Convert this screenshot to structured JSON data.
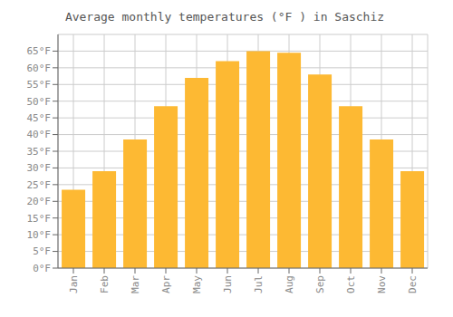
{
  "chart_data": {
    "type": "bar",
    "title": "Average monthly temperatures (°F ) in Saschiz",
    "categories": [
      "Jan",
      "Feb",
      "Mar",
      "Apr",
      "May",
      "Jun",
      "Jul",
      "Aug",
      "Sep",
      "Oct",
      "Nov",
      "Dec"
    ],
    "values": [
      23.5,
      29.0,
      38.5,
      48.5,
      57.0,
      62.0,
      65.0,
      64.5,
      58.0,
      48.5,
      38.5,
      29.0
    ],
    "color": "#FDB933",
    "ylim": [
      0,
      70
    ],
    "yticks": [
      {
        "value": 0,
        "label": "0°F"
      },
      {
        "value": 5,
        "label": "5°F"
      },
      {
        "value": 10,
        "label": "10°F"
      },
      {
        "value": 15,
        "label": "15°F"
      },
      {
        "value": 20,
        "label": "20°F"
      },
      {
        "value": 25,
        "label": "25°F"
      },
      {
        "value": 30,
        "label": "30°F"
      },
      {
        "value": 35,
        "label": "35°F"
      },
      {
        "value": 40,
        "label": "40°F"
      },
      {
        "value": 45,
        "label": "45°F"
      },
      {
        "value": 50,
        "label": "50°F"
      },
      {
        "value": 55,
        "label": "55°F"
      },
      {
        "value": 60,
        "label": "60°F"
      },
      {
        "value": 65,
        "label": "65°F"
      }
    ],
    "grid": true
  }
}
